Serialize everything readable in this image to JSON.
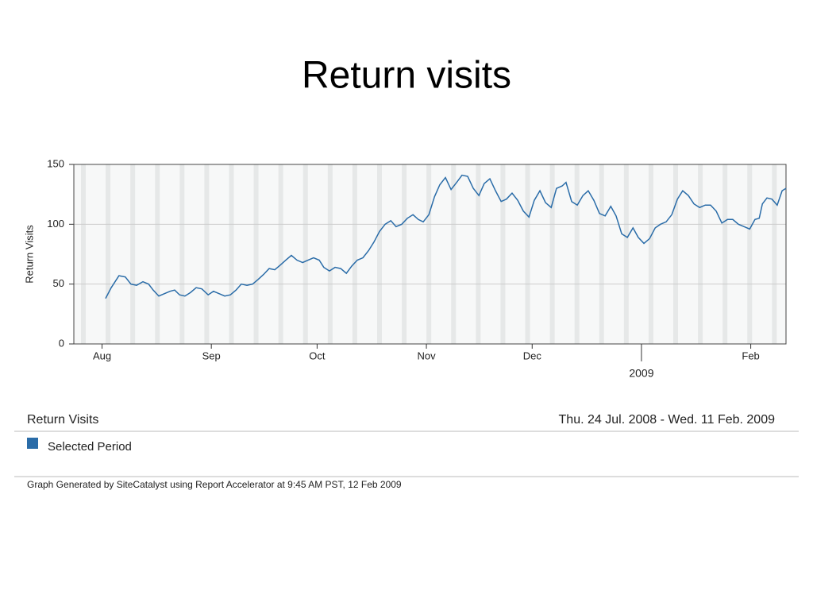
{
  "title": "Return visits",
  "chart_data": {
    "type": "line",
    "y_label": "Return Visits",
    "x": [
      9.0,
      10.6,
      12.8,
      14.6,
      16.2,
      17.8,
      19.6,
      21.2,
      22.5,
      24.1,
      25.7,
      27.3,
      28.6,
      30.0,
      31.5,
      33.1,
      34.7,
      36.3,
      38.1,
      39.6,
      41.2,
      42.8,
      44.4,
      46.0,
      47.5,
      49.1,
      50.7,
      52.3,
      53.8,
      55.4,
      57.0,
      58.6,
      60.1,
      61.7,
      63.3,
      64.9,
      66.4,
      68.0,
      69.6,
      70.9,
      72.5,
      74.1,
      75.7,
      77.3,
      78.8,
      80.4,
      82.0,
      83.6,
      85.1,
      86.7,
      88.3,
      89.9,
      91.4,
      93.0,
      94.6,
      96.2,
      97.7,
      99.1,
      100.7,
      102.3,
      103.8,
      105.4,
      107.0,
      108.6,
      110.1,
      111.7,
      113.3,
      114.9,
      116.4,
      118.0,
      119.6,
      121.2,
      122.7,
      124.3,
      125.9,
      127.5,
      129.1,
      130.6,
      132.2,
      133.8,
      135.4,
      136.9,
      138.5,
      139.6,
      141.2,
      142.8,
      144.4,
      145.9,
      147.5,
      149.1,
      150.7,
      152.3,
      153.8,
      155.4,
      157.0,
      158.6,
      160.1,
      161.7,
      163.3,
      164.9,
      166.4,
      168.0,
      169.6,
      171.2,
      172.7,
      174.3,
      175.9,
      177.5,
      179.1,
      180.6,
      182.2,
      183.8,
      185.4,
      186.9,
      188.5,
      190.1,
      191.7,
      193.2,
      194.4,
      195.3,
      196.6,
      198.0,
      199.5,
      200.9,
      202.0
    ],
    "series": [
      {
        "name": "Selected Period",
        "color": "#2a6ca8",
        "values": [
          38,
          47,
          57,
          56,
          50,
          49,
          52,
          50,
          45,
          40,
          42,
          44,
          45,
          41,
          40,
          43,
          47,
          46,
          41,
          44,
          42,
          40,
          41,
          45,
          50,
          49,
          50,
          54,
          58,
          63,
          62,
          66,
          70,
          74,
          70,
          68,
          70,
          72,
          70,
          64,
          61,
          64,
          63,
          59,
          65,
          70,
          72,
          78,
          85,
          94,
          100,
          103,
          98,
          100,
          105,
          108,
          104,
          102,
          108,
          123,
          133,
          139,
          129,
          135,
          141,
          140,
          130,
          124,
          134,
          138,
          128,
          119,
          121,
          126,
          120,
          111,
          106,
          120,
          128,
          118,
          114,
          130,
          132,
          135,
          119,
          116,
          124,
          128,
          120,
          109,
          107,
          115,
          107,
          92,
          89,
          97,
          89,
          84,
          88,
          97,
          100,
          102,
          108,
          121,
          128,
          124,
          117,
          114,
          116,
          116,
          111,
          101,
          104,
          104,
          100,
          98,
          96,
          104,
          105,
          117,
          122,
          121,
          116,
          128,
          130
        ]
      }
    ],
    "xlim": [
      0,
      202
    ],
    "xticks": [
      {
        "value": 8,
        "label": "Aug"
      },
      {
        "value": 39,
        "label": "Sep"
      },
      {
        "value": 69,
        "label": "Oct"
      },
      {
        "value": 100,
        "label": "Nov"
      },
      {
        "value": 130,
        "label": "Dec"
      },
      {
        "value": 192,
        "label": "Feb"
      }
    ],
    "x_year_ticks": [
      {
        "value": 161,
        "label": "2009"
      }
    ],
    "ylim": [
      0,
      150
    ],
    "yticks": [
      0,
      50,
      100,
      150
    ],
    "grid": true
  },
  "footer": {
    "metric": "Return Visits",
    "period": "Thu. 24 Jul. 2008 - Wed. 11 Feb. 2009",
    "note": "Graph Generated by SiteCatalyst using Report Accelerator at  9:45 AM PST, 12 Feb 2009"
  }
}
